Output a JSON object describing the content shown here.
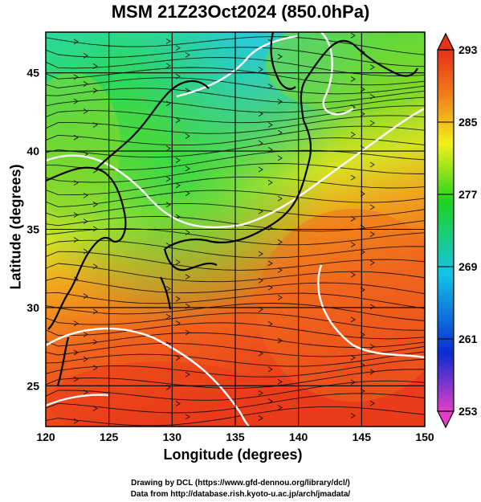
{
  "title": "MSM 21Z23Oct2024 (850.0hPa)",
  "xlabel": "Longitude (degrees)",
  "ylabel": "Latitude  (degrees)",
  "credit_line1": "Drawing by DCL (https://www.gfd-dennou.org/library/dcl/)",
  "credit_line2": "Data from http://database.rish.kyoto-u.ac.jp/arch/jmadata/",
  "chart_data": {
    "type": "heatmap",
    "title": "MSM 21Z23Oct2024 (850.0hPa)",
    "xlabel": "Longitude (degrees)",
    "ylabel": "Latitude  (degrees)",
    "xlim": [
      120,
      150
    ],
    "ylim": [
      22.4,
      47.6
    ],
    "x_ticks": [
      "120",
      "125",
      "130",
      "135",
      "140",
      "145",
      "150"
    ],
    "y_ticks": [
      "25",
      "30",
      "35",
      "40",
      "45"
    ],
    "grid": true,
    "colorbar": {
      "placement": "right",
      "range": [
        253,
        293
      ],
      "tick_labels": [
        "293",
        "285",
        "277",
        "269",
        "261",
        "253"
      ],
      "colors": [
        "#e43ec8",
        "#0a2bd0",
        "#14c3e6",
        "#1fd31f",
        "#f4f01a",
        "#f07a1a",
        "#e6301a"
      ]
    },
    "overlay": [
      "streamlines",
      "contours",
      "coastlines"
    ]
  },
  "colors": {
    "coastline": "#000000",
    "streamline": "#000000",
    "contour": "#ffffff"
  }
}
